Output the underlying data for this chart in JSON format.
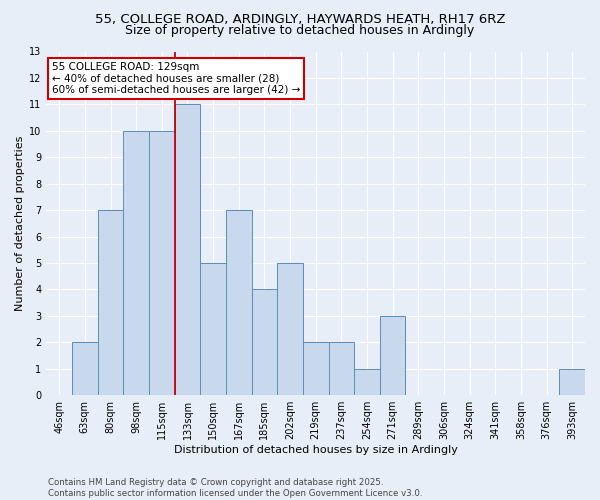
{
  "title1": "55, COLLEGE ROAD, ARDINGLY, HAYWARDS HEATH, RH17 6RZ",
  "title2": "Size of property relative to detached houses in Ardingly",
  "xlabel": "Distribution of detached houses by size in Ardingly",
  "ylabel": "Number of detached properties",
  "categories": [
    "46sqm",
    "63sqm",
    "80sqm",
    "98sqm",
    "115sqm",
    "133sqm",
    "150sqm",
    "167sqm",
    "185sqm",
    "202sqm",
    "219sqm",
    "237sqm",
    "254sqm",
    "271sqm",
    "289sqm",
    "306sqm",
    "324sqm",
    "341sqm",
    "358sqm",
    "376sqm",
    "393sqm"
  ],
  "values": [
    0,
    2,
    7,
    10,
    10,
    11,
    5,
    7,
    4,
    5,
    2,
    2,
    1,
    3,
    0,
    0,
    0,
    0,
    0,
    0,
    1
  ],
  "bar_color": "#c9d9ed",
  "bar_edge_color": "#5b8db8",
  "red_line_index": 5,
  "annotation_text_line1": "55 COLLEGE ROAD: 129sqm",
  "annotation_text_line2": "← 40% of detached houses are smaller (28)",
  "annotation_text_line3": "60% of semi-detached houses are larger (42) →",
  "annotation_box_color": "#ffffff",
  "annotation_box_edge_color": "#cc0000",
  "ylim": [
    0,
    13
  ],
  "yticks": [
    0,
    1,
    2,
    3,
    4,
    5,
    6,
    7,
    8,
    9,
    10,
    11,
    12,
    13
  ],
  "footer1": "Contains HM Land Registry data © Crown copyright and database right 2025.",
  "footer2": "Contains public sector information licensed under the Open Government Licence v3.0.",
  "bg_color": "#e8eef8",
  "fig_bg_color": "#e8eef8",
  "grid_color": "#ffffff",
  "title1_fontsize": 9.5,
  "title2_fontsize": 9,
  "axis_label_fontsize": 8,
  "tick_fontsize": 7,
  "annotation_fontsize": 7.5,
  "footer_fontsize": 6.2
}
